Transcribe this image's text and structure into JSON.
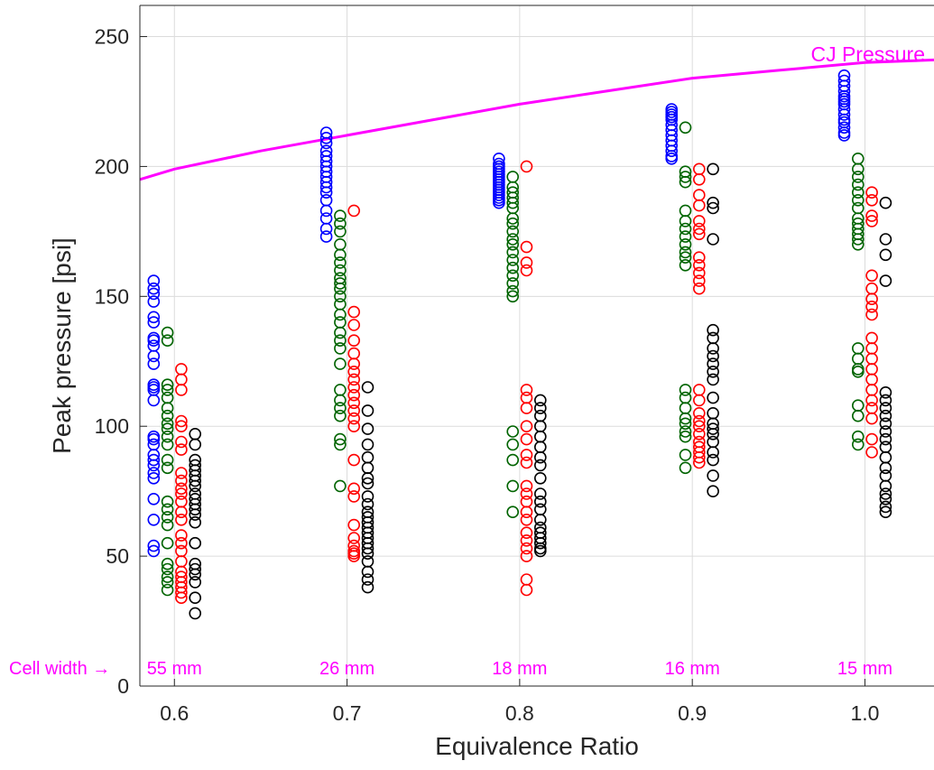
{
  "chart_data": {
    "type": "scatter",
    "title": "",
    "xlabel": "Equivalence Ratio",
    "ylabel": "Peak pressure [psi]",
    "xlim": [
      0.58,
      1.04
    ],
    "ylim": [
      0,
      262
    ],
    "xticks": [
      0.6,
      0.7,
      0.8,
      0.9,
      1.0
    ],
    "xtick_labels": [
      "0.6",
      "0.7",
      "0.8",
      "0.9",
      "1.0"
    ],
    "yticks": [
      0,
      50,
      100,
      150,
      200,
      250
    ],
    "ytick_labels": [
      "0",
      "50",
      "100",
      "150",
      "200",
      "250"
    ],
    "grid": true,
    "marker": "open-circle",
    "series": [
      {
        "color": "#0000ff",
        "x_offset": -0.012,
        "points_by_x": [
          {
            "x": 0.6,
            "values": [
              156,
              153,
              151,
              148,
              142,
              140,
              134,
              133,
              131,
              127,
              124,
              116,
              115,
              114,
              110,
              96,
              95,
              93,
              89,
              87,
              85,
              82,
              80,
              72,
              64,
              54,
              52
            ]
          },
          {
            "x": 0.7,
            "values": [
              213,
              211,
              209,
              206,
              204,
              202,
              200,
              198,
              196,
              194,
              192,
              190,
              187,
              183,
              180,
              176,
              173
            ]
          },
          {
            "x": 0.8,
            "values": [
              203,
              201,
              200,
              199,
              198,
              197,
              196,
              195,
              194,
              193,
              192,
              191,
              190,
              189,
              188,
              187,
              186
            ]
          },
          {
            "x": 0.9,
            "values": [
              222,
              221,
              220,
              219,
              218,
              216,
              214,
              212,
              210,
              208,
              206,
              204,
              203
            ]
          },
          {
            "x": 1.0,
            "values": [
              235,
              233,
              231,
              229,
              227,
              226,
              225,
              224,
              222,
              220,
              218,
              217,
              215,
              213,
              212
            ]
          }
        ]
      },
      {
        "color": "#006400",
        "x_offset": -0.004,
        "points_by_x": [
          {
            "x": 0.6,
            "values": [
              136,
              133,
              116,
              114,
              111,
              107,
              104,
              101,
              99,
              96,
              93,
              87,
              84,
              71,
              68,
              65,
              62,
              55,
              47,
              45,
              42,
              40,
              37
            ]
          },
          {
            "x": 0.7,
            "values": [
              181,
              178,
              175,
              170,
              166,
              163,
              160,
              157,
              155,
              153,
              150,
              147,
              143,
              140,
              136,
              133,
              130,
              124,
              114,
              110,
              107,
              104,
              95,
              93,
              77
            ]
          },
          {
            "x": 0.8,
            "values": [
              196,
              192,
              190,
              188,
              186,
              184,
              180,
              178,
              175,
              172,
              170,
              167,
              164,
              161,
              158,
              155,
              152,
              150,
              98,
              93,
              87,
              77,
              67
            ]
          },
          {
            "x": 0.9,
            "values": [
              215,
              198,
              196,
              194,
              183,
              179,
              176,
              173,
              170,
              167,
              165,
              162,
              114,
              111,
              107,
              103,
              101,
              98,
              96,
              89,
              84
            ]
          },
          {
            "x": 1.0,
            "values": [
              203,
              199,
              196,
              193,
              190,
              187,
              184,
              180,
              178,
              176,
              174,
              172,
              170,
              130,
              126,
              122,
              121,
              108,
              104,
              96,
              93
            ]
          }
        ]
      },
      {
        "color": "#ff0000",
        "x_offset": 0.004,
        "points_by_x": [
          {
            "x": 0.6,
            "values": [
              122,
              118,
              114,
              102,
              100,
              94,
              91,
              82,
              79,
              76,
              74,
              71,
              67,
              64,
              58,
              55,
              52,
              48,
              44,
              42,
              40,
              38,
              36,
              34
            ]
          },
          {
            "x": 0.7,
            "values": [
              183,
              144,
              139,
              133,
              128,
              124,
              121,
              118,
              115,
              112,
              109,
              106,
              103,
              100,
              87,
              76,
              73,
              62,
              57,
              54,
              52,
              51,
              50
            ]
          },
          {
            "x": 0.8,
            "values": [
              200,
              169,
              163,
              160,
              114,
              111,
              107,
              100,
              95,
              89,
              86,
              77,
              74,
              71,
              67,
              64,
              59,
              56,
              53,
              50,
              41,
              37
            ]
          },
          {
            "x": 0.9,
            "values": [
              199,
              195,
              189,
              185,
              179,
              176,
              174,
              165,
              162,
              159,
              156,
              153,
              114,
              110,
              105,
              102,
              100,
              97,
              94,
              92,
              90,
              88,
              86
            ]
          },
          {
            "x": 1.0,
            "values": [
              190,
              187,
              181,
              179,
              158,
              153,
              149,
              146,
              143,
              134,
              130,
              126,
              122,
              118,
              114,
              110,
              107,
              103,
              95,
              90
            ]
          }
        ]
      },
      {
        "color": "#000000",
        "x_offset": 0.012,
        "points_by_x": [
          {
            "x": 0.6,
            "values": [
              97,
              93,
              87,
              85,
              83,
              81,
              79,
              77,
              74,
              72,
              70,
              68,
              66,
              63,
              55,
              47,
              45,
              43,
              40,
              34,
              28
            ]
          },
          {
            "x": 0.7,
            "values": [
              115,
              106,
              99,
              93,
              88,
              84,
              80,
              78,
              73,
              70,
              67,
              65,
              63,
              61,
              59,
              57,
              55,
              53,
              51,
              48,
              44,
              41,
              38
            ]
          },
          {
            "x": 0.8,
            "values": [
              110,
              107,
              104,
              100,
              96,
              92,
              88,
              85,
              80,
              74,
              71,
              68,
              64,
              61,
              59,
              57,
              55,
              53,
              52
            ]
          },
          {
            "x": 0.9,
            "values": [
              199,
              186,
              184,
              172,
              137,
              134,
              130,
              127,
              124,
              121,
              118,
              111,
              105,
              101,
              99,
              97,
              94,
              90,
              87,
              81,
              75
            ]
          },
          {
            "x": 1.0,
            "values": [
              186,
              172,
              166,
              156,
              113,
              110,
              107,
              104,
              101,
              98,
              95,
              92,
              88,
              84,
              81,
              77,
              74,
              72,
              69,
              67
            ]
          }
        ]
      }
    ],
    "cj_curve": {
      "label": "CJ Pressure",
      "color": "#ff00ff",
      "x": [
        0.58,
        0.6,
        0.65,
        0.7,
        0.75,
        0.8,
        0.85,
        0.9,
        0.95,
        1.0,
        1.04
      ],
      "y": [
        195,
        199,
        206,
        212,
        218,
        224,
        229,
        234,
        237,
        240,
        241
      ]
    },
    "cell_width_annotation": {
      "prefix": "Cell width →",
      "labels": [
        {
          "x": 0.6,
          "text": "55 mm"
        },
        {
          "x": 0.7,
          "text": "26 mm"
        },
        {
          "x": 0.8,
          "text": "18 mm"
        },
        {
          "x": 0.9,
          "text": "16 mm"
        },
        {
          "x": 1.0,
          "text": "15 mm"
        }
      ]
    }
  }
}
